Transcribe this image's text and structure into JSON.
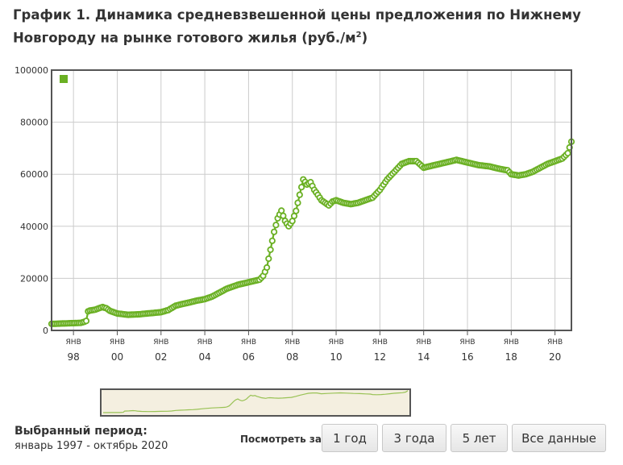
{
  "title": {
    "main": "График 1. Динамика средневзвешенной цены предложения по Нижнему Новгороду на рынке готового жилья (руб./м",
    "sup": "2",
    "tail": ")"
  },
  "colors": {
    "series": "#6ab023",
    "grid": "#cccccc",
    "plot_border": "#555555",
    "navigator_line": "#99c255",
    "navigator_bg": "#f4efe0"
  },
  "chart_data": {
    "type": "line",
    "x_unit": "year",
    "ylim": [
      0,
      100000
    ],
    "y_ticks": [
      "0",
      "20000",
      "40000",
      "60000",
      "80000",
      "100000"
    ],
    "x_tick_month": "ЯНВ",
    "x_ticks": [
      "98",
      "00",
      "02",
      "04",
      "06",
      "08",
      "10",
      "12",
      "14",
      "16",
      "18",
      "20"
    ],
    "x_tick_years": [
      1998,
      2000,
      2002,
      2004,
      2006,
      2008,
      2010,
      2012,
      2014,
      2016,
      2018,
      2020
    ],
    "grid": true,
    "legend": {
      "placement": "top-left",
      "label": ""
    },
    "series": [
      {
        "x": [
          1997.0,
          1997.33,
          1997.67,
          1998.0,
          1998.33,
          1998.58,
          1998.67,
          1999.0,
          1999.33,
          1999.5,
          1999.67,
          2000.0,
          2000.5,
          2001.0,
          2001.5,
          2002.0,
          2002.33,
          2002.67,
          2003.0,
          2003.33,
          2003.67,
          2004.0,
          2004.33,
          2004.67,
          2005.0,
          2005.5,
          2006.0,
          2006.25,
          2006.5,
          2006.67,
          2006.83,
          2007.0,
          2007.17,
          2007.33,
          2007.5,
          2007.67,
          2007.83,
          2008.0,
          2008.17,
          2008.33,
          2008.5,
          2008.67,
          2008.83,
          2009.0,
          2009.17,
          2009.33,
          2009.5,
          2009.67,
          2009.83,
          2010.0,
          2010.33,
          2010.67,
          2011.0,
          2011.33,
          2011.67,
          2012.0,
          2012.33,
          2012.67,
          2013.0,
          2013.33,
          2013.67,
          2014.0,
          2014.5,
          2015.0,
          2015.5,
          2016.0,
          2016.5,
          2017.0,
          2017.5,
          2017.83,
          2018.0,
          2018.33,
          2018.67,
          2019.0,
          2019.33,
          2019.67,
          2020.0,
          2020.33,
          2020.58,
          2020.75
        ],
        "y": [
          2500,
          2600,
          2700,
          2800,
          2900,
          3500,
          7500,
          8000,
          9000,
          8500,
          7500,
          6500,
          6000,
          6200,
          6600,
          7000,
          7800,
          9500,
          10200,
          10800,
          11500,
          12000,
          13000,
          14500,
          16000,
          17500,
          18500,
          19000,
          19500,
          21000,
          24000,
          31000,
          38000,
          43000,
          46000,
          42000,
          40000,
          42000,
          46000,
          52000,
          58000,
          56000,
          57000,
          54000,
          52000,
          50000,
          49000,
          48000,
          49500,
          50000,
          49000,
          48500,
          49000,
          50000,
          51000,
          54000,
          58000,
          61000,
          64000,
          65000,
          65000,
          62500,
          63500,
          64500,
          65500,
          64500,
          63500,
          63000,
          62000,
          61500,
          60000,
          59500,
          60000,
          61000,
          62500,
          64000,
          65000,
          66000,
          68000,
          72500
        ]
      }
    ]
  },
  "selection": {
    "label": "Выбранный период:",
    "value": "январь 1997 - октябрь 2020"
  },
  "range_buttons": {
    "label": "Посмотреть за:",
    "one_year": "1 год",
    "three_years": "3 года",
    "five_years": "5 лет",
    "all": "Все данные"
  }
}
